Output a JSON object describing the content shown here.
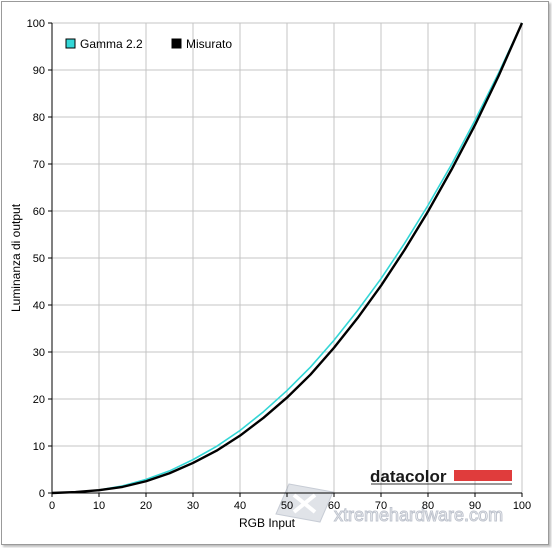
{
  "chart_data": {
    "type": "line",
    "title": "",
    "xlabel": "RGB Input",
    "ylabel": "Luminanza di output",
    "xlim": [
      0,
      100
    ],
    "ylim": [
      0,
      100
    ],
    "xticks": [
      0,
      10,
      20,
      30,
      40,
      50,
      60,
      70,
      80,
      90,
      100
    ],
    "yticks": [
      0,
      10,
      20,
      30,
      40,
      50,
      60,
      70,
      80,
      90,
      100
    ],
    "grid": true,
    "legend_position": "top-left",
    "series": [
      {
        "name": "Gamma 2.2",
        "color": "#33d6d6",
        "x": [
          0,
          5,
          10,
          15,
          20,
          25,
          30,
          35,
          40,
          45,
          50,
          55,
          60,
          65,
          70,
          75,
          80,
          85,
          90,
          95,
          100
        ],
        "y": [
          0,
          0.14,
          0.63,
          1.5,
          2.9,
          4.7,
          7.1,
          9.9,
          13.3,
          17.3,
          21.8,
          26.8,
          32.5,
          38.8,
          45.6,
          53.1,
          61.2,
          69.9,
          79.3,
          89.3,
          100
        ]
      },
      {
        "name": "Misurato",
        "color": "#000000",
        "x": [
          0,
          5,
          10,
          15,
          20,
          25,
          30,
          35,
          40,
          45,
          50,
          55,
          60,
          65,
          70,
          75,
          80,
          85,
          90,
          95,
          100
        ],
        "y": [
          0,
          0.2,
          0.6,
          1.3,
          2.5,
          4.2,
          6.4,
          9.0,
          12.2,
          16.0,
          20.3,
          25.2,
          30.9,
          37.2,
          44.1,
          51.7,
          59.9,
          68.8,
          78.3,
          88.7,
          100
        ]
      }
    ]
  },
  "watermarks": {
    "brand": "datacolor",
    "brand_bar_color": "#e03c3c",
    "site": "xtremehardware.com"
  }
}
